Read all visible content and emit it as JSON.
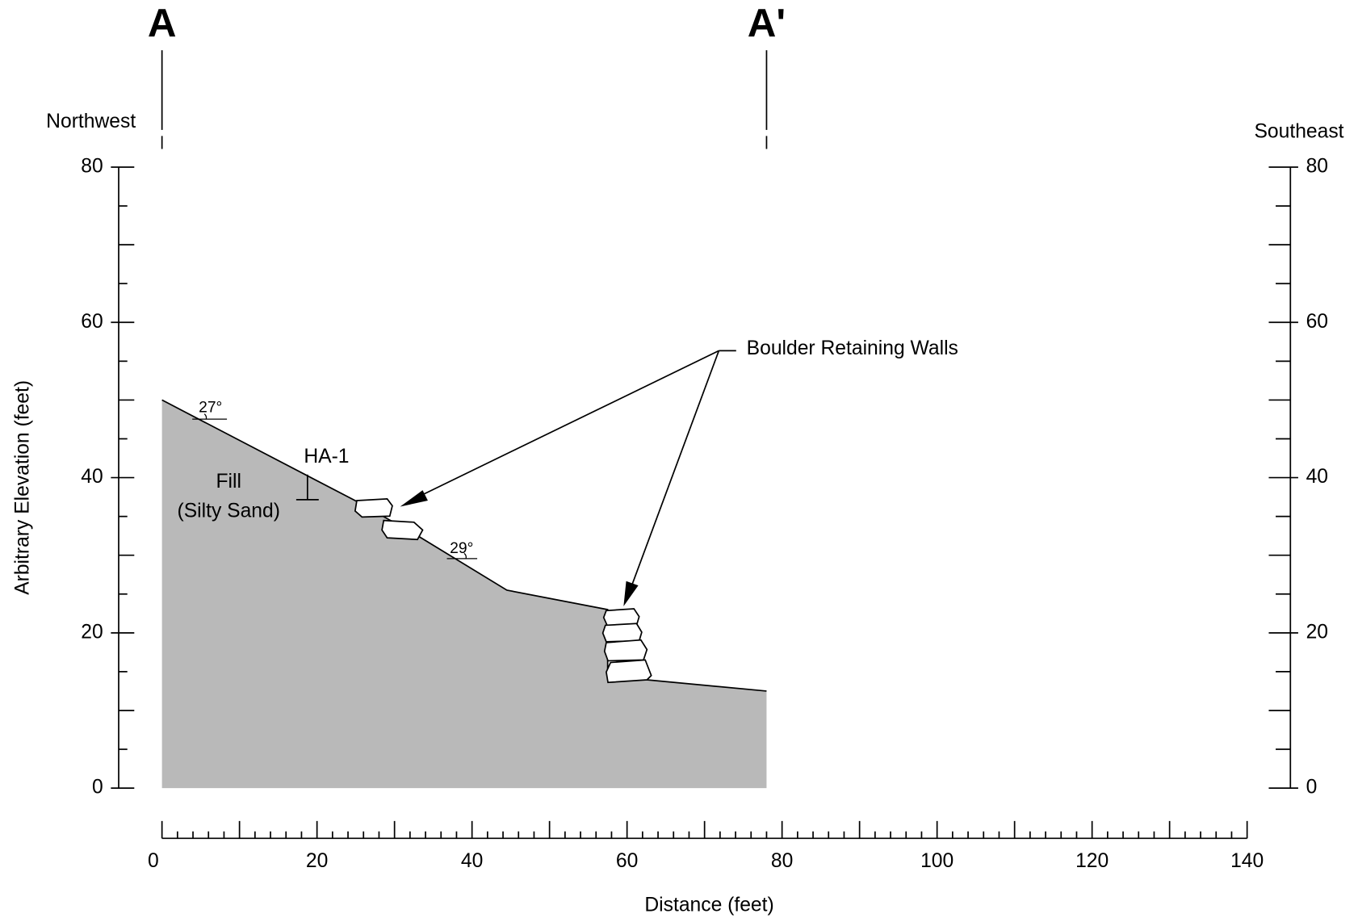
{
  "chart_data": {
    "type": "area",
    "x_label": "Distance (feet)",
    "y_label": "Arbitrary Elevation (feet)",
    "x": [
      0,
      25,
      33,
      44.5,
      57.5,
      57.5,
      62,
      78
    ],
    "values": [
      50,
      37,
      32.5,
      25.5,
      23,
      14,
      14,
      12.5
    ],
    "color": "#b9b9b9",
    "xlim": [
      0,
      140
    ],
    "ylim": [
      0,
      80
    ],
    "xticks": [
      0,
      20,
      40,
      60,
      80,
      100,
      120,
      140
    ],
    "yticks": [
      0,
      20,
      40,
      60,
      80
    ],
    "y2lim": [
      0,
      80
    ],
    "y2ticks": [
      0,
      20,
      40,
      60,
      80
    ],
    "sections": [
      {
        "label": "A",
        "x": 0
      },
      {
        "label": "A'",
        "x": 78
      }
    ],
    "direction_left": "Northwest",
    "direction_right": "Southeast",
    "annotations": {
      "walls": "Boulder Retaining Walls",
      "boring": "HA-1",
      "fill": [
        "Fill",
        "(Silty Sand)"
      ],
      "angles": [
        "27°",
        "29°"
      ]
    }
  }
}
